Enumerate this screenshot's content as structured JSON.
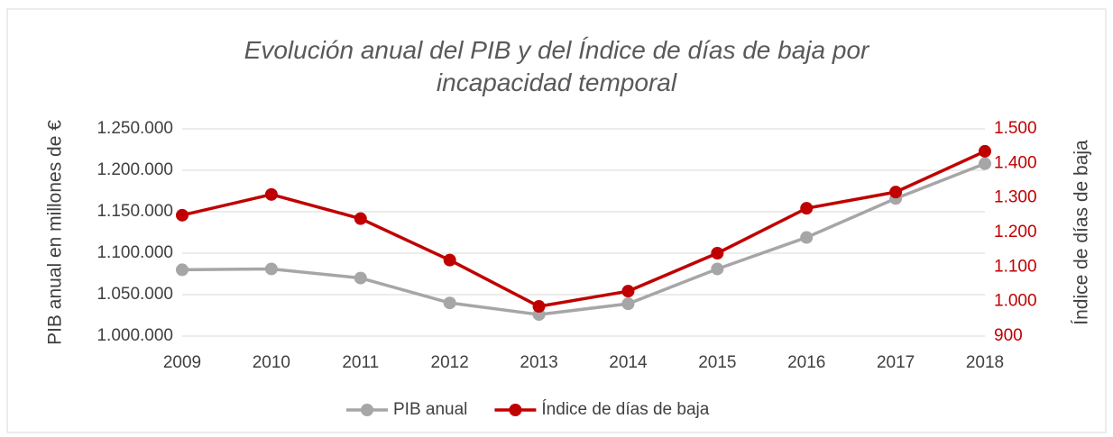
{
  "chart_data": {
    "type": "line",
    "title": "Evolución anual del PIB y del Índice de días de baja por incapacidad temporal",
    "y_label": "PIB anual en millones de €",
    "y2_label": "Índice de días de baja",
    "categories": [
      "2009",
      "2010",
      "2011",
      "2012",
      "2013",
      "2014",
      "2015",
      "2016",
      "2017",
      "2018"
    ],
    "series": [
      {
        "name": "PIB anual",
        "color": "#a6a6a6",
        "values": [
          1080000,
          1081000,
          1070000,
          1040000,
          1026000,
          1039000,
          1081000,
          1119000,
          1166000,
          1208000
        ]
      },
      {
        "name": "Índice de días de baja",
        "color": "#c00000",
        "axis": "y2",
        "values": [
          1250,
          1310,
          1240,
          1120,
          986,
          1030,
          1140,
          1270,
          1317,
          1435
        ]
      }
    ],
    "ylim": [
      1000000,
      1250000
    ],
    "yticks": [
      {
        "value": 1000000,
        "label": "1.000.000"
      },
      {
        "value": 1050000,
        "label": "1.050.000"
      },
      {
        "value": 1100000,
        "label": "1.100.000"
      },
      {
        "value": 1150000,
        "label": "1.150.000"
      },
      {
        "value": 1200000,
        "label": "1.200.000"
      },
      {
        "value": 1250000,
        "label": "1.250.000"
      }
    ],
    "y2lim": [
      900,
      1500
    ],
    "y2ticks": [
      900,
      {
        "value": 1000,
        "label": "1.000"
      },
      {
        "value": 1100,
        "label": "1.100"
      },
      {
        "value": 1200,
        "label": "1.200"
      },
      {
        "value": 1300,
        "label": "1.300"
      },
      {
        "value": 1400,
        "label": "1.400"
      },
      {
        "value": 1500,
        "label": "1.500"
      }
    ],
    "y2_color": "#c00000",
    "grid": true,
    "legend": "bottom"
  }
}
